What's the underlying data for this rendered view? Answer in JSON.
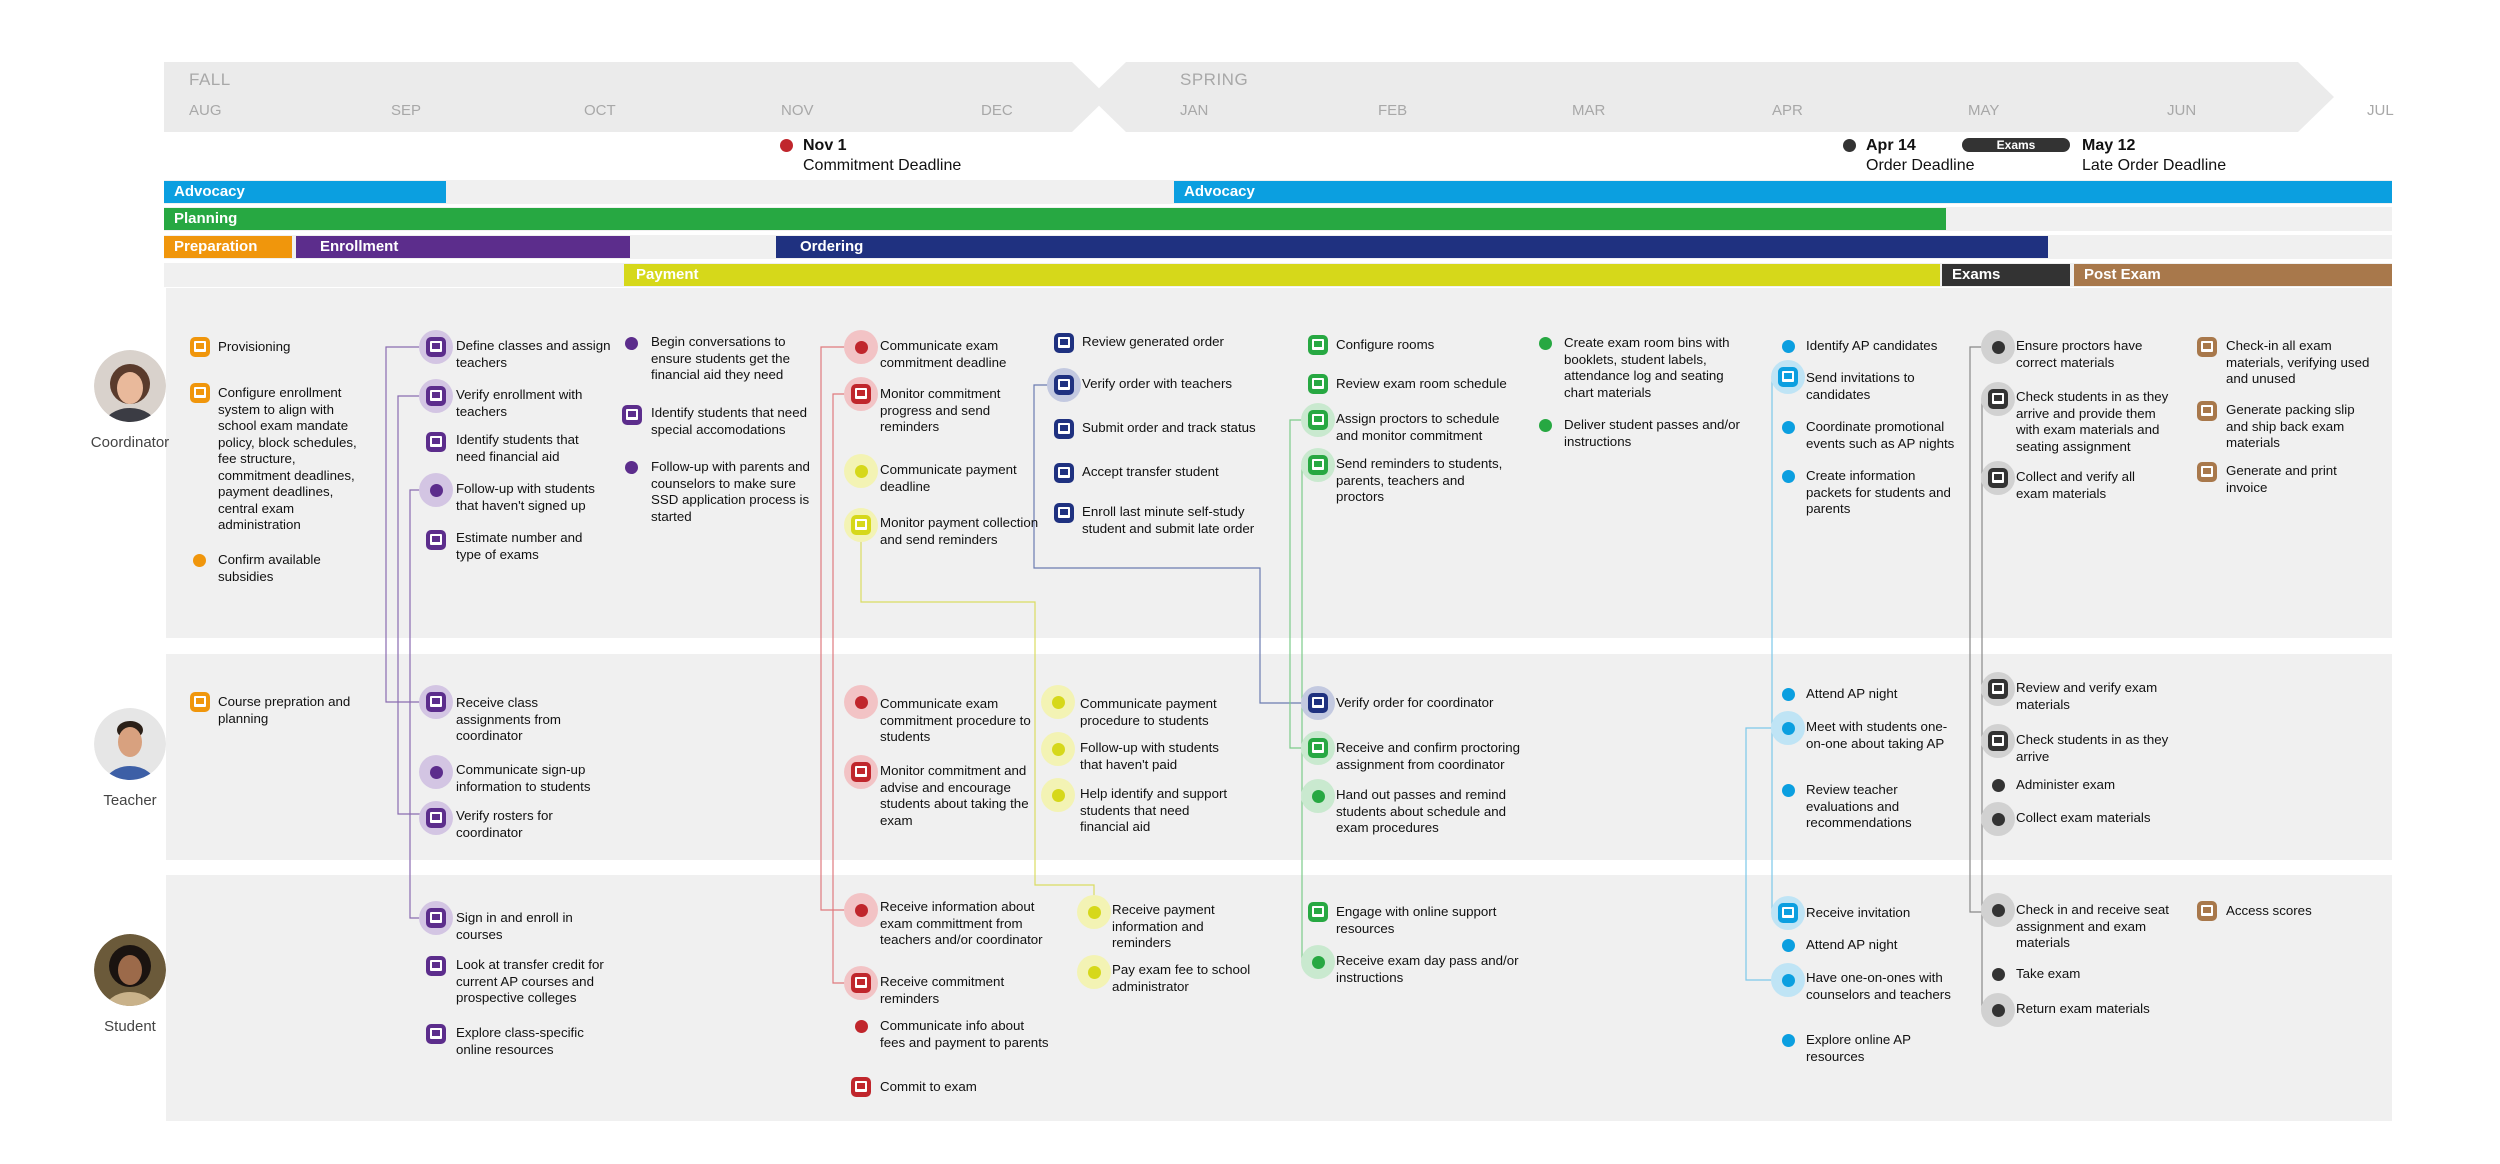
{
  "timeline": {
    "seasons": [
      "FALL",
      "SPRING"
    ],
    "months": [
      "AUG",
      "SEP",
      "OCT",
      "NOV",
      "DEC",
      "JAN",
      "FEB",
      "MAR",
      "APR",
      "MAY",
      "JUN",
      "JUL"
    ],
    "milestones": [
      {
        "date": "Nov 1",
        "label": "Commitment Deadline",
        "color": "#c0262c"
      },
      {
        "date": "Apr 14",
        "label": "Order Deadline",
        "color": "#333333"
      },
      {
        "date": "May 12",
        "label": "Late Order Deadline"
      }
    ],
    "exams_pill": "Exams"
  },
  "phases": {
    "advocacy": "Advocacy",
    "planning": "Planning",
    "preparation": "Preparation",
    "enrollment": "Enrollment",
    "ordering": "Ordering",
    "payment": "Payment",
    "exams": "Exams",
    "post_exam": "Post Exam"
  },
  "colors": {
    "preparation": "#f0960c",
    "enrollment": "#5c2d8c",
    "ordering": "#1f3180",
    "payment": "#d6d81a",
    "planning": "#27a842",
    "advocacy": "#0b9fe0",
    "exams": "#333333",
    "post_exam": "#a8784b",
    "deadline_red": "#c0262c"
  },
  "personas": {
    "coordinator": "Coordinator",
    "teacher": "Teacher",
    "student": "Student"
  },
  "icons": {
    "task": "computer-icon",
    "activity": "dot-icon"
  },
  "coordinator": {
    "preparation": [
      "Provisioning",
      "Configure enrollment system to align with school exam mandate policy, block schedules, fee structure, commitment deadlines, payment deadlines, central exam administration",
      "Confirm available subsidies"
    ],
    "enrollment_a": [
      "Define classes and assign teachers",
      "Verify enrollment with teachers",
      "Identify students that need financial aid",
      "Follow-up with students that haven't signed up",
      "Estimate number and type of exams"
    ],
    "enrollment_b": [
      "Begin conversations to ensure students get the financial aid they need",
      "Identify students that need special accomodations",
      "Follow-up with parents and counselors to make sure SSD application process is started"
    ],
    "payment": [
      "Communicate exam commitment deadline",
      "Monitor commitment progress and send reminders",
      "Communicate payment deadline",
      "Monitor payment collection and send reminders"
    ],
    "ordering": [
      "Review generated order",
      "Verify order with teachers",
      "Submit order and track status",
      "Accept transfer student",
      "Enroll last minute self-study student and submit late order"
    ],
    "planning_a": [
      "Configure rooms",
      "Review exam room schedule",
      "Assign proctors to schedule and monitor commitment",
      "Send reminders to students, parents, teachers and proctors"
    ],
    "planning_b": [
      "Create exam room bins with booklets, student labels, attendance log and seating chart materials",
      "Deliver student passes and/or instructions"
    ],
    "advocacy": [
      "Identify AP candidates",
      "Send invitations to candidates",
      "Coordinate promotional events such as AP nights",
      "Create information packets for students and parents"
    ],
    "exams": [
      "Ensure proctors have correct materials",
      "Check students in as they arrive and provide them with exam materials and seating assignment",
      "Collect and verify all exam materials"
    ],
    "post_exam": [
      "Check-in all exam materials, verifying used and unused",
      "Generate packing slip and ship back exam materials",
      "Generate and print invoice"
    ]
  },
  "teacher": {
    "preparation": [
      "Course prepration and planning"
    ],
    "enrollment": [
      "Receive class assignments from coordinator",
      "Communicate sign-up information to students",
      "Verify rosters for coordinator"
    ],
    "payment_a": [
      "Communicate exam commitment procedure to students",
      "Monitor commitment and advise and encourage students about taking the exam"
    ],
    "payment_b": [
      "Communicate payment procedure to students",
      "Follow-up with students that haven't paid",
      "Help identify and support students that need financial aid"
    ],
    "ordering": [
      "Verify order for coordinator"
    ],
    "planning": [
      "Receive and confirm proctoring assignment from coordinator",
      "Hand out passes and remind students about schedule and exam procedures"
    ],
    "advocacy": [
      "Attend AP night",
      "Meet with students one-on-one about taking AP",
      "Review teacher evaluations and recommendations"
    ],
    "exams": [
      "Review and verify exam materials",
      "Check students in as they arrive",
      "Administer exam",
      "Collect exam materials"
    ]
  },
  "student": {
    "enrollment": [
      "Sign in and enroll in courses",
      "Look at transfer credit for current AP courses and prospective colleges",
      "Explore class-specific online resources"
    ],
    "payment_a": [
      "Receive information about exam committment from teachers and/or coordinator",
      "Receive commitment reminders",
      "Communicate info about fees and payment to parents",
      "Commit to exam"
    ],
    "payment_b": [
      "Receive payment information and reminders",
      "Pay exam fee to school administrator"
    ],
    "planning": [
      "Engage with online support resources",
      "Receive exam day pass and/or instructions"
    ],
    "advocacy": [
      "Receive invitation",
      "Attend AP night",
      "Have one-on-ones with counselors and teachers",
      "Explore online AP resources"
    ],
    "exams": [
      "Check in and receive seat assignment and exam materials",
      "Take exam",
      "Return exam materials"
    ],
    "post_exam": [
      "Access scores"
    ]
  }
}
